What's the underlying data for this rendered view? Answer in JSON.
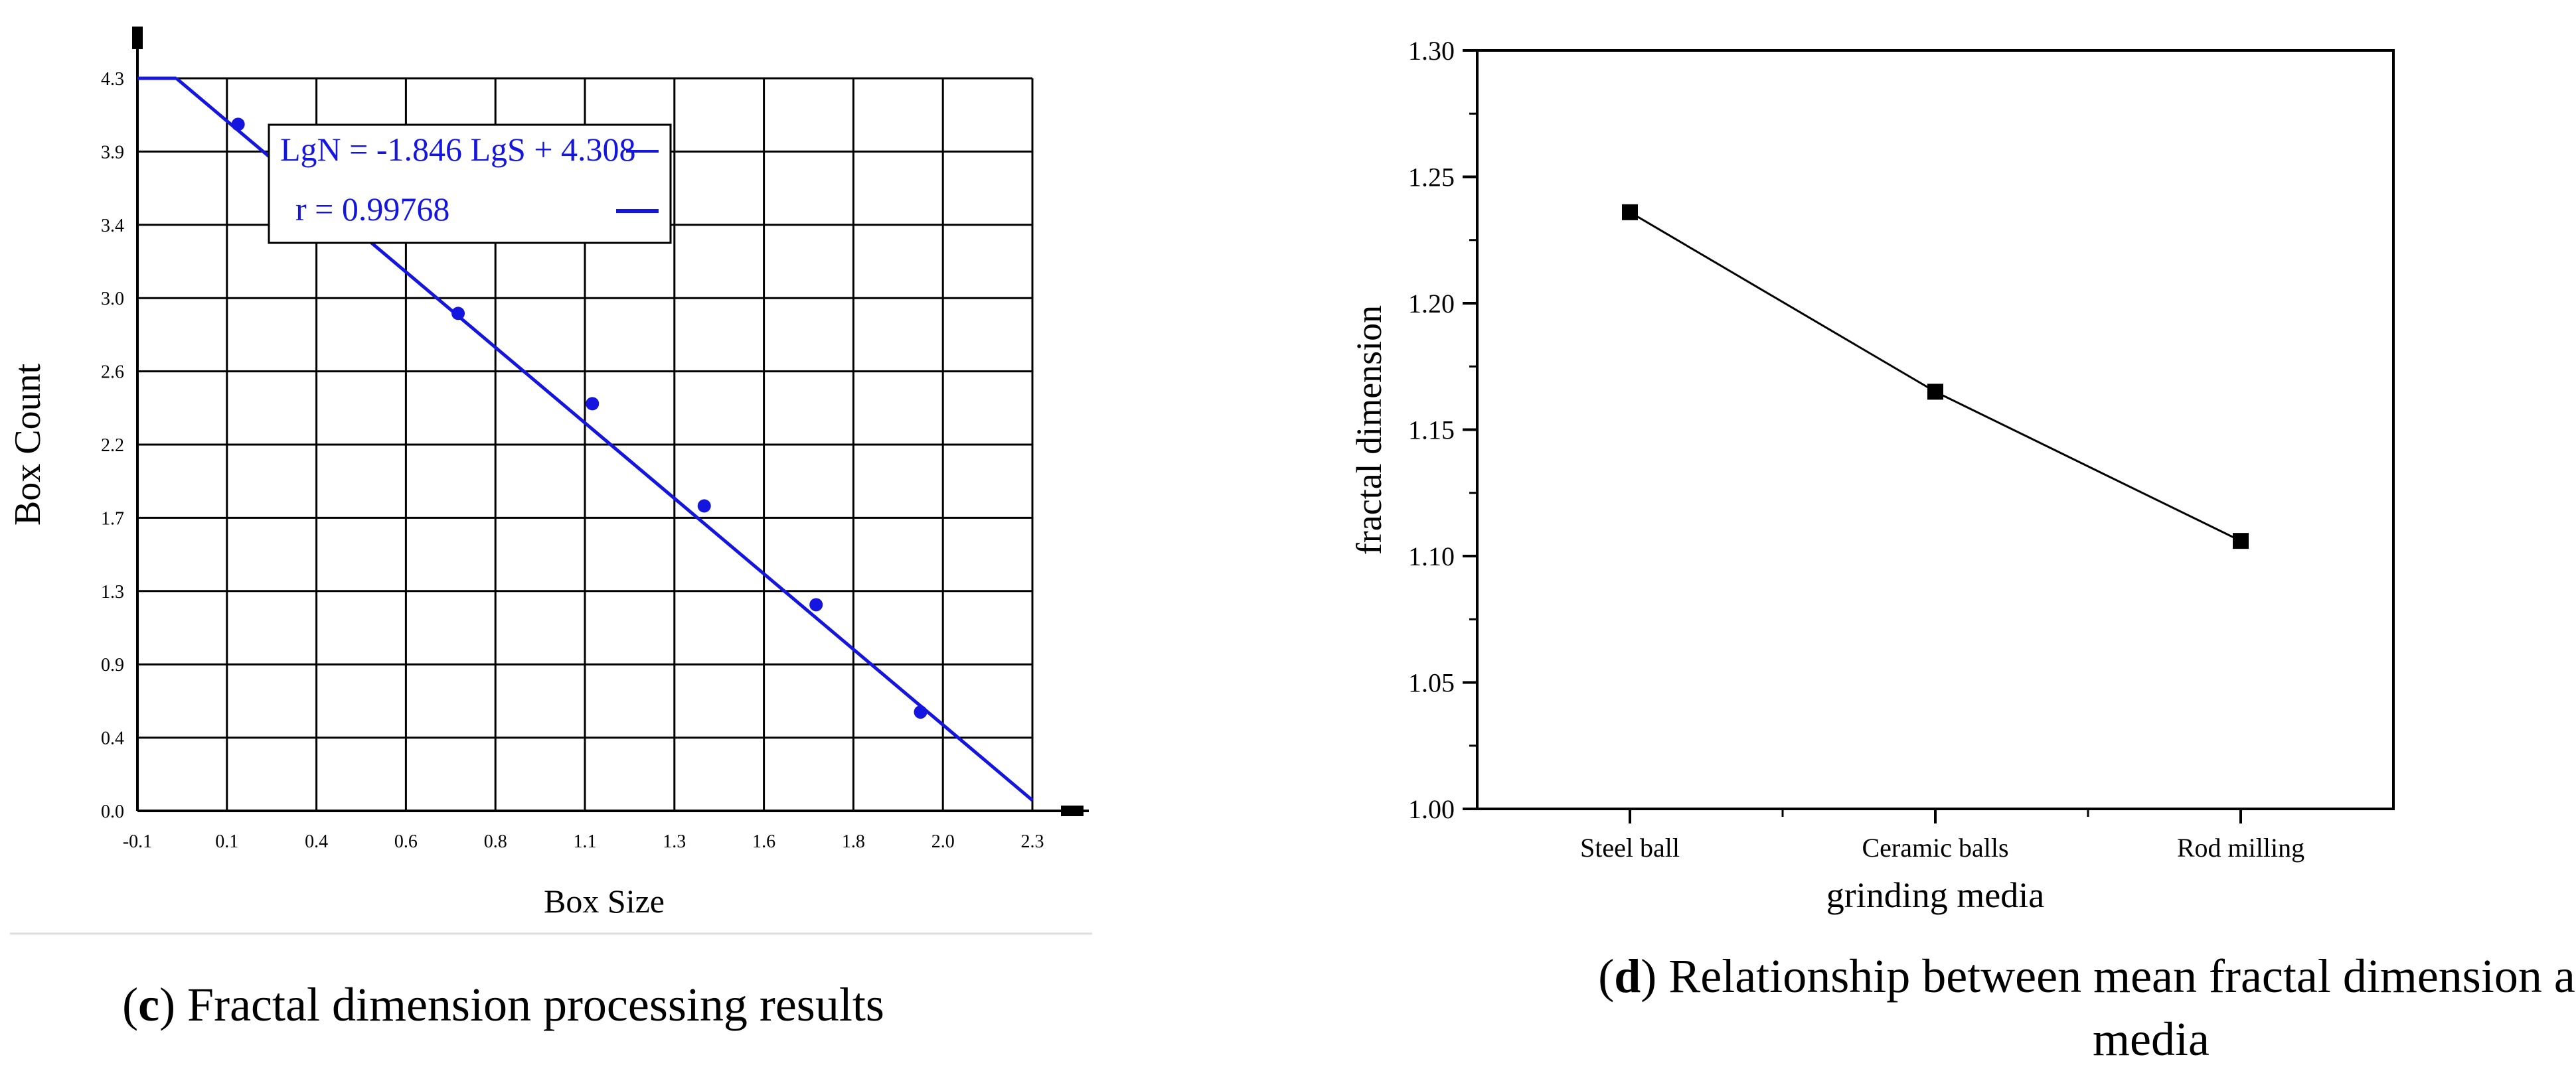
{
  "chart_data": [
    {
      "type": "scatter",
      "panel": "c",
      "caption_letter": "c",
      "caption_text": ") Fractal dimension processing results",
      "xlabel": "Box Size",
      "ylabel": "Box Count",
      "xticks": [
        "-0.1",
        "0.1",
        "0.4",
        "0.6",
        "0.8",
        "1.1",
        "1.3",
        "1.6",
        "1.8",
        "2.0",
        "2.3"
      ],
      "yticks": [
        "0.0",
        "0.4",
        "0.9",
        "1.3",
        "1.7",
        "2.2",
        "2.6",
        "3.0",
        "3.4",
        "3.9",
        "4.3"
      ],
      "xlim": [
        -0.1,
        2.3
      ],
      "ylim": [
        0.0,
        4.3
      ],
      "grid": true,
      "points": [
        {
          "x": 0.17,
          "y": 4.03
        },
        {
          "x": 0.76,
          "y": 2.92
        },
        {
          "x": 1.12,
          "y": 2.39
        },
        {
          "x": 1.42,
          "y": 1.79
        },
        {
          "x": 1.72,
          "y": 1.21
        },
        {
          "x": 2.0,
          "y": 0.58
        }
      ],
      "fit": {
        "slope": -1.846,
        "intercept": 4.308
      },
      "legend": {
        "equation": "LgN = -1.846 LgS + 4.308",
        "r_label": "r = 0.99768",
        "placement": "top-left"
      },
      "colors": {
        "series": "#1515e0",
        "axis": "#000000"
      }
    },
    {
      "type": "line",
      "panel": "d",
      "caption_letter": "d",
      "caption_text_line1": ") Relationship between mean fractal dimension and grinding",
      "caption_text_line2": "media",
      "xlabel": "grinding media",
      "ylabel": "fractal dimension",
      "categories": [
        "Steel ball",
        "Ceramic balls",
        "Rod milling"
      ],
      "values": [
        1.236,
        1.165,
        1.106
      ],
      "ylim": [
        1.0,
        1.3
      ],
      "yticks": [
        "1.00",
        "1.05",
        "1.10",
        "1.15",
        "1.20",
        "1.25",
        "1.30"
      ],
      "grid": false,
      "colors": {
        "series": "#000000",
        "axis": "#000000"
      }
    }
  ]
}
